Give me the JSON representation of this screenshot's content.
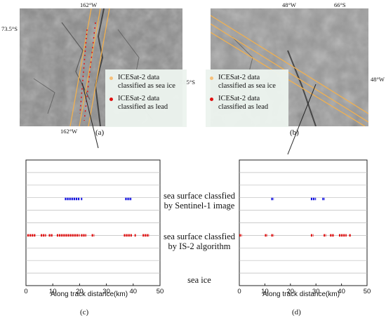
{
  "colors": {
    "sea_ice": "#f6c07a",
    "lead": "#e01010",
    "sentinel": "#1010e0",
    "track": "#f0b050"
  },
  "panel_a": {
    "caption": "(a)",
    "coord_top": "162°W",
    "coord_left": "73.5°S",
    "coord_right": "73.5°S",
    "coord_bottom": "162°W"
  },
  "panel_b": {
    "caption": "(b)",
    "coord_top_left": "48°W",
    "coord_top_right": "66°S",
    "coord_right": "48°W"
  },
  "legend": {
    "sea_ice_label": "ICESat-2 data classified as sea ice",
    "lead_label": "ICESat-2 data classified as lead"
  },
  "middle_labels": {
    "sentinel": "sea surface classfied by Sentinel-1 image",
    "is2": "sea surface classfied by IS-2 algorithm",
    "sea_ice": "sea ice"
  },
  "chart_data": [
    {
      "type": "scatter",
      "caption": "(c)",
      "xlabel": "Along track distance(km)",
      "xlim": [
        0,
        50
      ],
      "xticks": [
        0,
        10,
        20,
        30,
        40,
        50
      ],
      "series": [
        {
          "color": "#1010e0",
          "level": "sentinel",
          "segments": [
            [
              14.5,
              20
            ],
            [
              20.5,
              21
            ],
            [
              37,
              39.5
            ]
          ]
        },
        {
          "color": "#e01010",
          "level": "is2",
          "segments": [
            [
              0.5,
              3.5
            ],
            [
              5.5,
              7.5
            ],
            [
              8.5,
              10
            ],
            [
              11.5,
              20
            ],
            [
              20.5,
              22.5
            ],
            [
              24.5,
              25.5
            ],
            [
              36.5,
              39.5
            ],
            [
              40.5,
              41
            ],
            [
              43.5,
              46
            ]
          ]
        }
      ]
    },
    {
      "type": "scatter",
      "caption": "(d)",
      "xlabel": "Along track distance(km)",
      "xlim": [
        0,
        50
      ],
      "xticks": [
        0,
        10,
        20,
        30,
        40,
        50
      ],
      "series": [
        {
          "color": "#1010e0",
          "level": "sentinel",
          "segments": [
            [
              12.5,
              13.5
            ],
            [
              28,
              30
            ],
            [
              32.5,
              33.5
            ]
          ]
        },
        {
          "color": "#e01010",
          "level": "is2",
          "segments": [
            [
              0,
              1
            ],
            [
              10,
              11
            ],
            [
              12.5,
              13.5
            ],
            [
              28,
              29
            ],
            [
              33,
              34
            ],
            [
              35.5,
              37
            ],
            [
              39,
              42
            ],
            [
              43,
              43.8
            ]
          ]
        }
      ]
    }
  ]
}
